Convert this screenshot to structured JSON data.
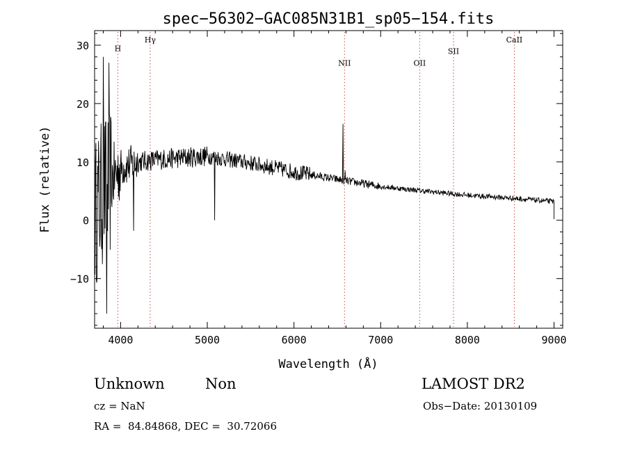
{
  "chart_data": {
    "type": "line",
    "title": "spec−56302−GAC085N31B1_sp05−154.fits",
    "xlabel": "Wavelength (Å)",
    "ylabel": "Flux (relative)",
    "xlim": [
      3700,
      9100
    ],
    "ylim": [
      -18.5,
      32.5
    ],
    "x_ticks": [
      4000,
      5000,
      6000,
      7000,
      8000,
      9000
    ],
    "x_tick_labels": [
      "4000",
      "5000",
      "6000",
      "7000",
      "8000",
      "9000"
    ],
    "y_ticks": [
      -10,
      0,
      10,
      20,
      30
    ],
    "y_tick_labels": [
      "−10",
      "0",
      "10",
      "20",
      "30"
    ],
    "grid": false,
    "line_color": "#000000",
    "line_marker_color": "#cc4444",
    "lines": [
      {
        "label": "H",
        "wavelength": 3968,
        "label_flux": 29.0
      },
      {
        "label": "Hγ",
        "wavelength": 4341,
        "label_flux": 30.5
      },
      {
        "label": "NII",
        "wavelength": 6583,
        "label_flux": 26.5
      },
      {
        "label": "OII",
        "wavelength": 7450,
        "label_flux": 26.5
      },
      {
        "label": "SII",
        "wavelength": 7840,
        "label_flux": 28.5
      },
      {
        "label": "CaII",
        "wavelength": 8542,
        "label_flux": 30.5
      }
    ],
    "spectrum_envelope": [
      [
        3700,
        1.0
      ],
      [
        3800,
        5.0
      ],
      [
        3900,
        7.0
      ],
      [
        4000,
        9.0
      ],
      [
        4200,
        10.0
      ],
      [
        4500,
        10.5
      ],
      [
        5000,
        11.0
      ],
      [
        5500,
        9.8
      ],
      [
        6000,
        8.3
      ],
      [
        6500,
        7.0
      ],
      [
        7000,
        5.8
      ],
      [
        7500,
        5.0
      ],
      [
        8000,
        4.3
      ],
      [
        8500,
        3.8
      ],
      [
        9000,
        3.2
      ]
    ],
    "spectrum_features": [
      {
        "wavelength": 5085,
        "flux": 0.0
      },
      {
        "wavelength": 6563,
        "flux": 16.5
      },
      {
        "wavelength": 6590,
        "flux": 8.5
      },
      {
        "wavelength": 4150,
        "flux": -1.8
      },
      {
        "wavelength": 3840,
        "flux": -16.0
      },
      {
        "wavelength": 3800,
        "flux": 28.0
      },
      {
        "wavelength": 3865,
        "flux": 27.0
      }
    ]
  },
  "info": {
    "class": "Unknown",
    "subclass": "Non",
    "survey": "LAMOST DR2",
    "cz": "cz = NaN",
    "obs_date": "Obs−Date: 20130109",
    "coords": "RA =  84.84868, DEC =  30.72066"
  }
}
